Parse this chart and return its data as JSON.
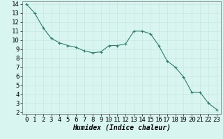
{
  "x": [
    0,
    1,
    2,
    3,
    4,
    5,
    6,
    7,
    8,
    9,
    10,
    11,
    12,
    13,
    14,
    15,
    16,
    17,
    18,
    19,
    20,
    21,
    22,
    23
  ],
  "y": [
    14.0,
    13.0,
    11.4,
    10.2,
    9.7,
    9.4,
    9.2,
    8.8,
    8.6,
    8.7,
    9.4,
    9.4,
    9.6,
    11.0,
    11.0,
    10.7,
    9.4,
    7.7,
    7.0,
    5.9,
    4.2,
    4.2,
    3.0,
    2.3
  ],
  "line_color": "#2e7d6e",
  "marker": "+",
  "marker_size": 3,
  "marker_color": "#2e7d6e",
  "bg_color": "#d8f5f0",
  "grid_color": "#c8e8e0",
  "xlabel": "Humidex (Indice chaleur)",
  "xlim": [
    -0.5,
    23.5
  ],
  "ylim_min": 1.8,
  "ylim_max": 14.3,
  "yticks": [
    2,
    3,
    4,
    5,
    6,
    7,
    8,
    9,
    10,
    11,
    12,
    13,
    14
  ],
  "xticks": [
    0,
    1,
    2,
    3,
    4,
    5,
    6,
    7,
    8,
    9,
    10,
    11,
    12,
    13,
    14,
    15,
    16,
    17,
    18,
    19,
    20,
    21,
    22,
    23
  ],
  "xlabel_fontsize": 7,
  "tick_fontsize": 6.5,
  "line_width": 0.8
}
